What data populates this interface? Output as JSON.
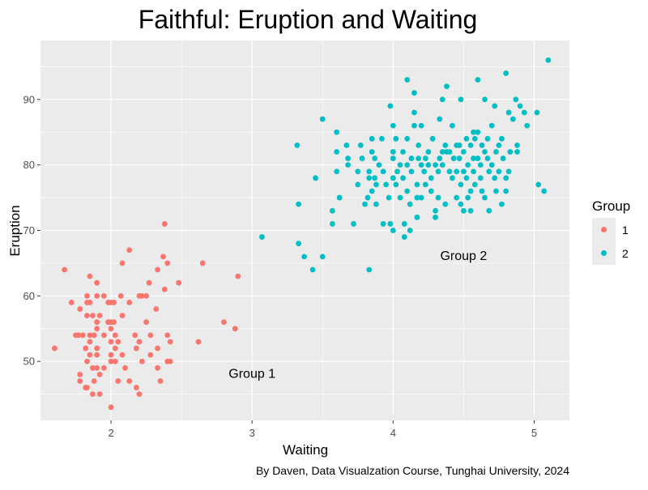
{
  "chart_data": {
    "type": "scatter",
    "title": "Faithful: Eruption and Waiting",
    "xlabel": "Waiting",
    "ylabel": "Eruption",
    "caption": "By Daven, Data Visualzation Course, Tunghai University, 2024",
    "xlim": [
      1.5,
      5.25
    ],
    "ylim": [
      41,
      99
    ],
    "x_ticks": [
      2,
      3,
      4,
      5
    ],
    "y_ticks": [
      50,
      60,
      70,
      80,
      90
    ],
    "grid": true,
    "legend": {
      "title": "Group",
      "placement": "right"
    },
    "annotations": [
      {
        "text": "Group 1",
        "x": 3.0,
        "y": 47.5
      },
      {
        "text": "Group 2",
        "x": 4.5,
        "y": 65.5
      }
    ],
    "series": [
      {
        "name": "1",
        "color": "#F8766D",
        "points": [
          [
            1.6,
            52
          ],
          [
            1.67,
            64
          ],
          [
            1.72,
            59
          ],
          [
            1.75,
            54
          ],
          [
            1.77,
            54
          ],
          [
            1.78,
            58
          ],
          [
            1.78,
            48
          ],
          [
            1.78,
            47
          ],
          [
            1.8,
            54
          ],
          [
            1.82,
            52
          ],
          [
            1.82,
            46
          ],
          [
            1.83,
            57
          ],
          [
            1.83,
            60
          ],
          [
            1.83,
            59
          ],
          [
            1.83,
            50
          ],
          [
            1.83,
            46
          ],
          [
            1.85,
            63
          ],
          [
            1.85,
            59
          ],
          [
            1.85,
            54
          ],
          [
            1.85,
            53
          ],
          [
            1.85,
            51
          ],
          [
            1.87,
            57
          ],
          [
            1.87,
            49
          ],
          [
            1.87,
            45
          ],
          [
            1.88,
            54
          ],
          [
            1.88,
            47
          ],
          [
            1.9,
            62
          ],
          [
            1.9,
            60
          ],
          [
            1.9,
            56
          ],
          [
            1.9,
            55
          ],
          [
            1.9,
            52
          ],
          [
            1.9,
            51
          ],
          [
            1.9,
            49
          ],
          [
            1.92,
            57
          ],
          [
            1.92,
            48
          ],
          [
            1.92,
            45
          ],
          [
            1.95,
            60
          ],
          [
            1.95,
            54
          ],
          [
            1.95,
            49
          ],
          [
            1.98,
            59
          ],
          [
            1.98,
            56
          ],
          [
            2.0,
            59
          ],
          [
            2.0,
            56
          ],
          [
            2.0,
            55
          ],
          [
            2.0,
            53
          ],
          [
            2.0,
            51
          ],
          [
            2.0,
            50
          ],
          [
            2.0,
            43
          ],
          [
            2.02,
            59
          ],
          [
            2.02,
            56
          ],
          [
            2.03,
            54
          ],
          [
            2.03,
            52
          ],
          [
            2.03,
            50
          ],
          [
            2.05,
            53
          ],
          [
            2.05,
            47
          ],
          [
            2.07,
            60
          ],
          [
            2.08,
            65
          ],
          [
            2.08,
            57
          ],
          [
            2.08,
            51
          ],
          [
            2.1,
            49
          ],
          [
            2.13,
            67
          ],
          [
            2.13,
            59
          ],
          [
            2.13,
            47
          ],
          [
            2.17,
            54
          ],
          [
            2.18,
            46
          ],
          [
            2.18,
            52
          ],
          [
            2.2,
            60
          ],
          [
            2.2,
            53
          ],
          [
            2.2,
            45
          ],
          [
            2.22,
            60
          ],
          [
            2.22,
            50
          ],
          [
            2.25,
            60
          ],
          [
            2.25,
            56
          ],
          [
            2.27,
            62
          ],
          [
            2.28,
            54
          ],
          [
            2.28,
            51
          ],
          [
            2.32,
            58
          ],
          [
            2.33,
            64
          ],
          [
            2.33,
            52
          ],
          [
            2.33,
            49
          ],
          [
            2.35,
            47
          ],
          [
            2.37,
            66
          ],
          [
            2.38,
            71
          ],
          [
            2.38,
            61
          ],
          [
            2.4,
            65
          ],
          [
            2.4,
            54
          ],
          [
            2.4,
            50
          ],
          [
            2.42,
            53
          ],
          [
            2.42,
            50
          ],
          [
            2.48,
            62
          ],
          [
            2.62,
            53
          ],
          [
            2.65,
            65
          ],
          [
            2.8,
            56
          ],
          [
            2.88,
            55
          ],
          [
            2.9,
            63
          ]
        ]
      },
      {
        "name": "2",
        "color": "#00BFC4",
        "points": [
          [
            3.07,
            69
          ],
          [
            3.32,
            83
          ],
          [
            3.33,
            68
          ],
          [
            3.33,
            74
          ],
          [
            3.37,
            66
          ],
          [
            3.43,
            64
          ],
          [
            3.45,
            78
          ],
          [
            3.5,
            87
          ],
          [
            3.5,
            66
          ],
          [
            3.57,
            71
          ],
          [
            3.57,
            73
          ],
          [
            3.6,
            85
          ],
          [
            3.6,
            82
          ],
          [
            3.6,
            79
          ],
          [
            3.62,
            75
          ],
          [
            3.67,
            83
          ],
          [
            3.68,
            80
          ],
          [
            3.68,
            81
          ],
          [
            3.72,
            71
          ],
          [
            3.75,
            77
          ],
          [
            3.75,
            79
          ],
          [
            3.77,
            83
          ],
          [
            3.78,
            81
          ],
          [
            3.8,
            74
          ],
          [
            3.82,
            75
          ],
          [
            3.83,
            78
          ],
          [
            3.83,
            79
          ],
          [
            3.83,
            64
          ],
          [
            3.85,
            84
          ],
          [
            3.85,
            82
          ],
          [
            3.85,
            76
          ],
          [
            3.87,
            78
          ],
          [
            3.87,
            81
          ],
          [
            3.88,
            77
          ],
          [
            3.88,
            74
          ],
          [
            3.9,
            80
          ],
          [
            3.92,
            84
          ],
          [
            3.93,
            79
          ],
          [
            3.93,
            71
          ],
          [
            3.95,
            77
          ],
          [
            3.97,
            75
          ],
          [
            3.98,
            89
          ],
          [
            3.98,
            71
          ],
          [
            4.0,
            82
          ],
          [
            4.0,
            86
          ],
          [
            4.0,
            81
          ],
          [
            4.0,
            78
          ],
          [
            4.0,
            70
          ],
          [
            4.02,
            84
          ],
          [
            4.02,
            77
          ],
          [
            4.03,
            79
          ],
          [
            4.05,
            80
          ],
          [
            4.05,
            75
          ],
          [
            4.07,
            82
          ],
          [
            4.07,
            78
          ],
          [
            4.08,
            71
          ],
          [
            4.08,
            69
          ],
          [
            4.1,
            93
          ],
          [
            4.1,
            84
          ],
          [
            4.1,
            80
          ],
          [
            4.1,
            76
          ],
          [
            4.12,
            74
          ],
          [
            4.12,
            70
          ],
          [
            4.13,
            81
          ],
          [
            4.13,
            79
          ],
          [
            4.15,
            91
          ],
          [
            4.15,
            86
          ],
          [
            4.15,
            88
          ],
          [
            4.17,
            77
          ],
          [
            4.17,
            75
          ],
          [
            4.17,
            72
          ],
          [
            4.18,
            81
          ],
          [
            4.18,
            83
          ],
          [
            4.2,
            80
          ],
          [
            4.2,
            75
          ],
          [
            4.2,
            86
          ],
          [
            4.22,
            79
          ],
          [
            4.23,
            81
          ],
          [
            4.23,
            77
          ],
          [
            4.25,
            82
          ],
          [
            4.25,
            80
          ],
          [
            4.27,
            78
          ],
          [
            4.27,
            76
          ],
          [
            4.28,
            84
          ],
          [
            4.3,
            80
          ],
          [
            4.3,
            72
          ],
          [
            4.3,
            73
          ],
          [
            4.32,
            79
          ],
          [
            4.32,
            75
          ],
          [
            4.33,
            87
          ],
          [
            4.33,
            81
          ],
          [
            4.35,
            80
          ],
          [
            4.35,
            82
          ],
          [
            4.35,
            90
          ],
          [
            4.37,
            74
          ],
          [
            4.37,
            83
          ],
          [
            4.38,
            82
          ],
          [
            4.38,
            92
          ],
          [
            4.4,
            79
          ],
          [
            4.4,
            82
          ],
          [
            4.42,
            86
          ],
          [
            4.42,
            78
          ],
          [
            4.43,
            81
          ],
          [
            4.45,
            83
          ],
          [
            4.45,
            79
          ],
          [
            4.45,
            75
          ],
          [
            4.47,
            81
          ],
          [
            4.47,
            83
          ],
          [
            4.48,
            77
          ],
          [
            4.48,
            90
          ],
          [
            4.48,
            74
          ],
          [
            4.5,
            82
          ],
          [
            4.5,
            79
          ],
          [
            4.5,
            73
          ],
          [
            4.52,
            84
          ],
          [
            4.52,
            78
          ],
          [
            4.53,
            80
          ],
          [
            4.53,
            75
          ],
          [
            4.55,
            83
          ],
          [
            4.55,
            76
          ],
          [
            4.55,
            73
          ],
          [
            4.57,
            85
          ],
          [
            4.57,
            81
          ],
          [
            4.57,
            79
          ],
          [
            4.58,
            84
          ],
          [
            4.58,
            77
          ],
          [
            4.6,
            93
          ],
          [
            4.6,
            85
          ],
          [
            4.6,
            81
          ],
          [
            4.62,
            80
          ],
          [
            4.62,
            78
          ],
          [
            4.63,
            83
          ],
          [
            4.63,
            76
          ],
          [
            4.65,
            90
          ],
          [
            4.65,
            82
          ],
          [
            4.65,
            75
          ],
          [
            4.67,
            84
          ],
          [
            4.67,
            81
          ],
          [
            4.68,
            79
          ],
          [
            4.68,
            73
          ],
          [
            4.7,
            86
          ],
          [
            4.7,
            80
          ],
          [
            4.72,
            89
          ],
          [
            4.72,
            78
          ],
          [
            4.73,
            82
          ],
          [
            4.73,
            76
          ],
          [
            4.75,
            83
          ],
          [
            4.75,
            79
          ],
          [
            4.77,
            84
          ],
          [
            4.77,
            74
          ],
          [
            4.78,
            81
          ],
          [
            4.8,
            94
          ],
          [
            4.8,
            78
          ],
          [
            4.8,
            76
          ],
          [
            4.82,
            88
          ],
          [
            4.82,
            79
          ],
          [
            4.83,
            82
          ],
          [
            4.85,
            87
          ],
          [
            4.87,
            90
          ],
          [
            4.88,
            83
          ],
          [
            4.88,
            82
          ],
          [
            4.9,
            89
          ],
          [
            4.93,
            88
          ],
          [
            4.95,
            86
          ],
          [
            5.02,
            88
          ],
          [
            5.03,
            77
          ],
          [
            5.07,
            76
          ],
          [
            5.1,
            96
          ]
        ]
      }
    ]
  }
}
